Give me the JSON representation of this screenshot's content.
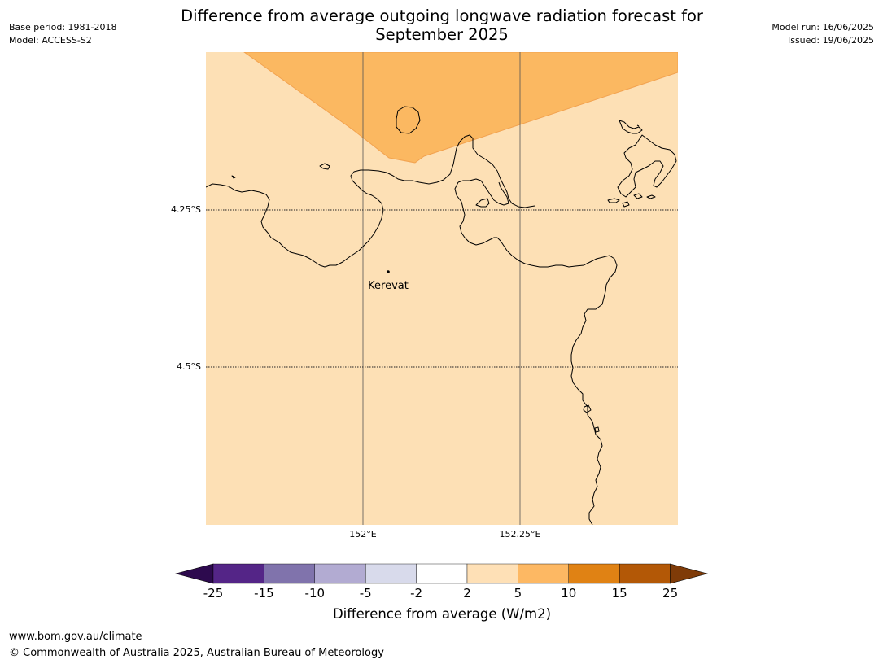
{
  "header": {
    "title_line1": "Difference from average outgoing longwave radiation forecast for",
    "title_line2": "September 2025",
    "base_period": "Base period: 1981-2018",
    "model": "Model: ACCESS-S2",
    "model_run": "Model run: 16/06/2025",
    "issued": "Issued: 19/06/2025"
  },
  "map": {
    "lat_labels": [
      "4.25°S",
      "4.5°S"
    ],
    "lon_labels": [
      "152°E",
      "152.25°E"
    ],
    "place_label": "Kerevat",
    "background_category": "2 to 5",
    "colors": {
      "category_2_5": "#fde0b5",
      "category_5_10": "#fbb861",
      "coastline": "#000000",
      "gridline": "#555555"
    }
  },
  "colorbar": {
    "label": "Difference from average (W/m2)",
    "ticks": [
      "-25",
      "-15",
      "-10",
      "-5",
      "-2",
      "2",
      "5",
      "10",
      "15",
      "25"
    ],
    "colors": [
      "#2d0a4e",
      "#542587",
      "#8073ac",
      "#b2abd2",
      "#d8daeb",
      "#ffffff",
      "#fee0b6",
      "#fdb863",
      "#e08214",
      "#b35806",
      "#7f3b08"
    ]
  },
  "footer": {
    "url": "www.bom.gov.au/climate",
    "copyright": "© Commonwealth of Australia 2025, Australian Bureau of Meteorology"
  }
}
